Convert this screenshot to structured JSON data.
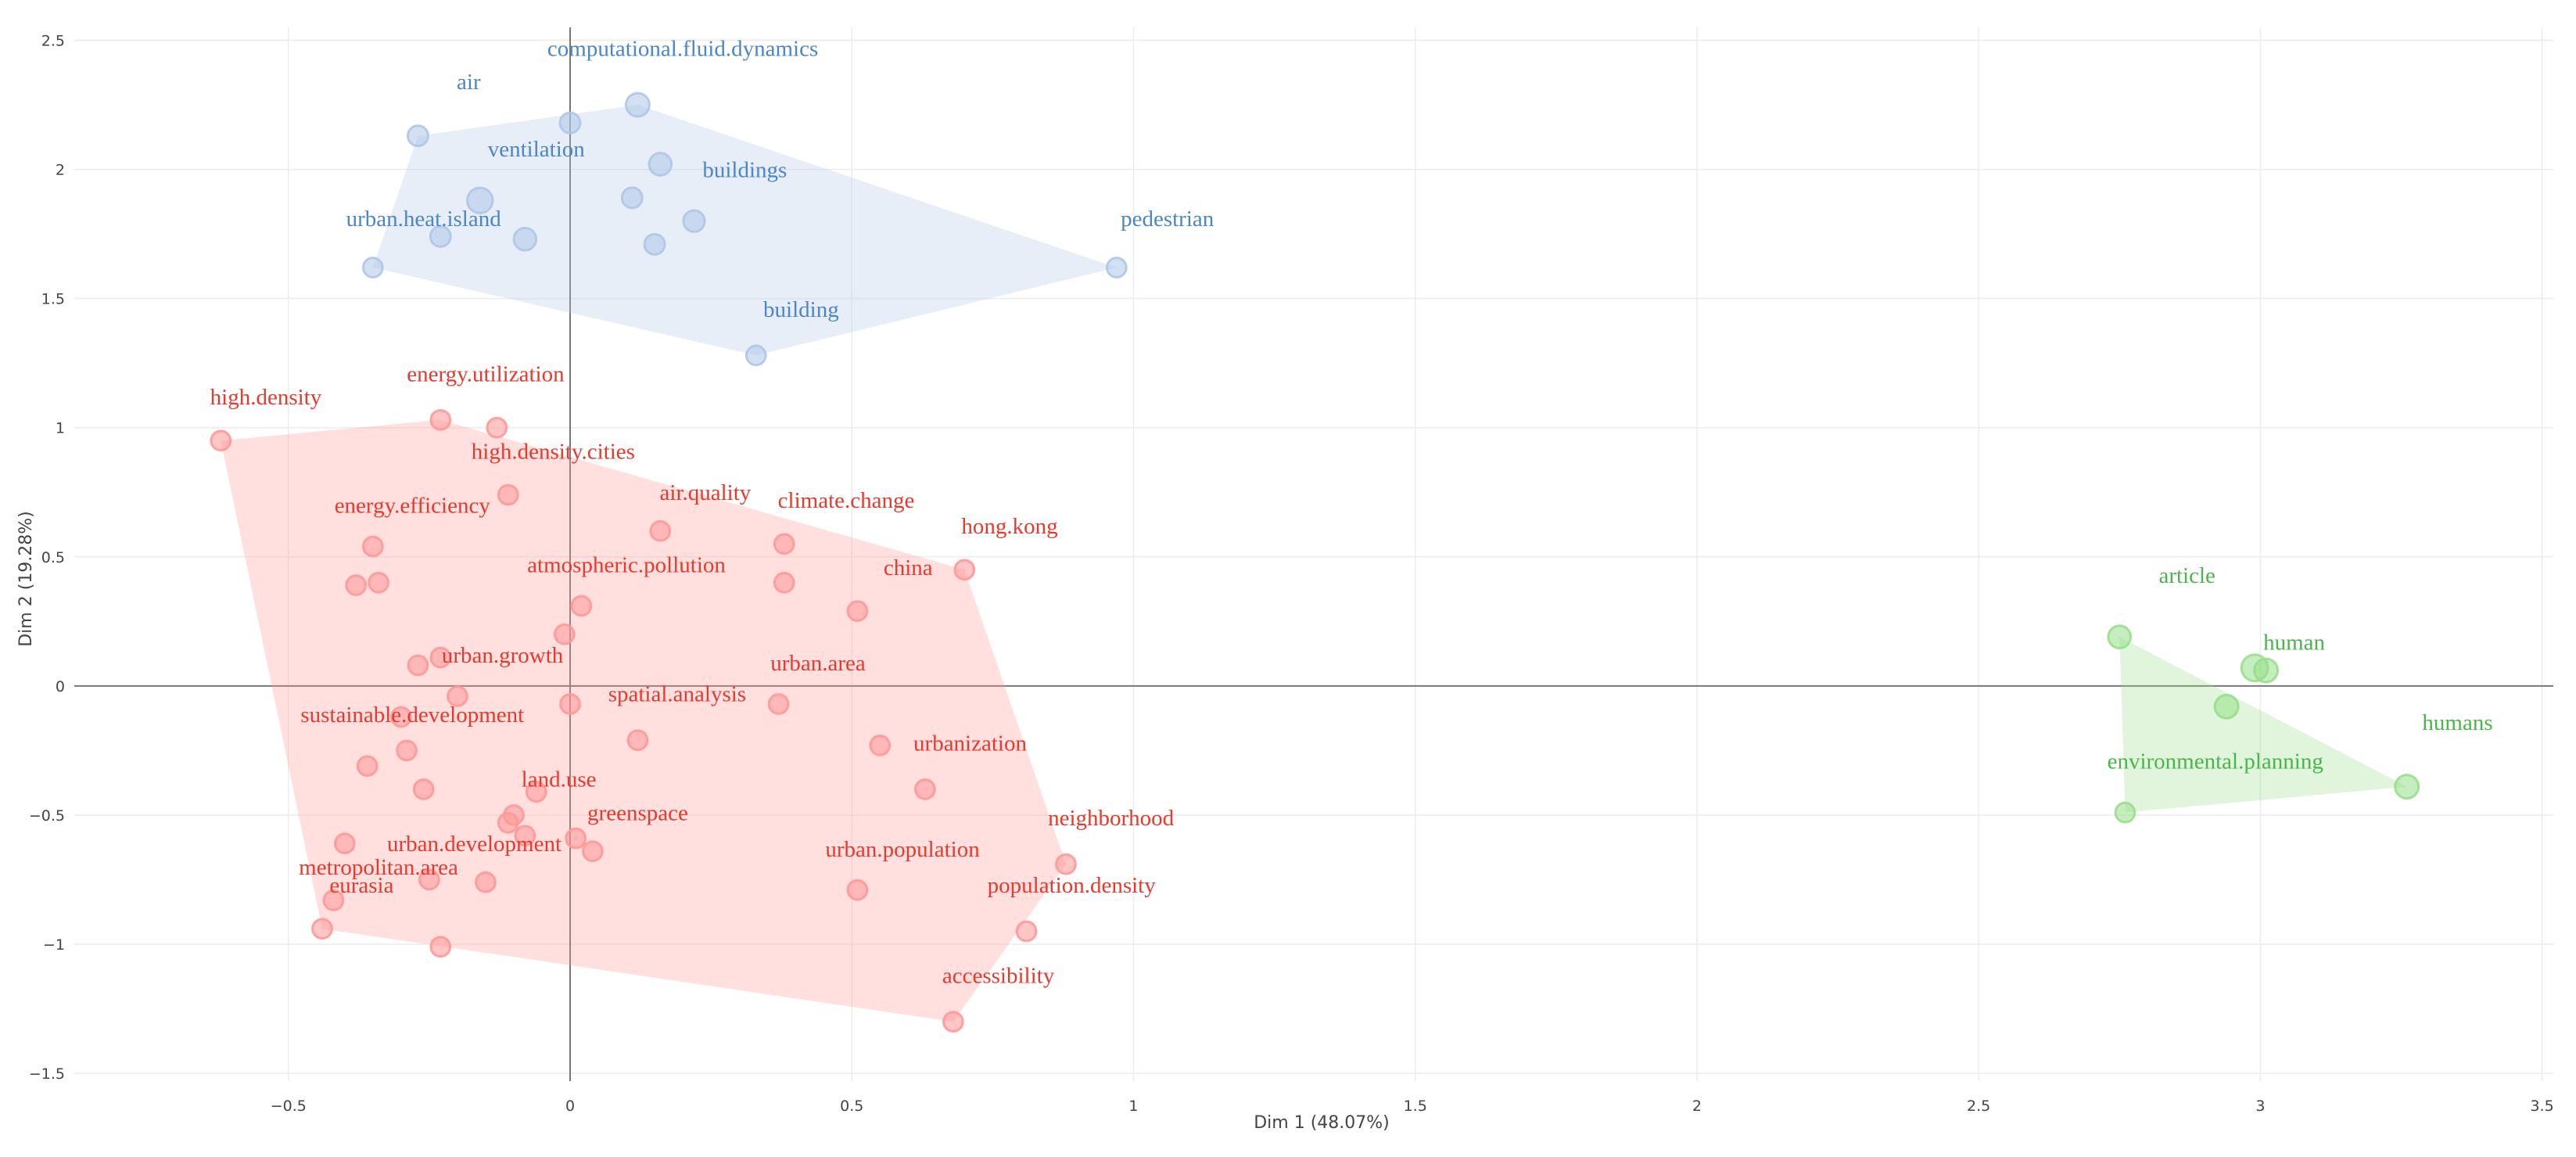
{
  "chart_data": {
    "type": "scatter",
    "title": "",
    "xlabel": "Dim 1 (48.07%)",
    "ylabel": "Dim 2 (19.28%)",
    "xlim": [
      -0.88,
      3.52
    ],
    "ylim": [
      -1.53,
      2.55
    ],
    "xticks": [
      -0.5,
      0,
      0.5,
      1,
      1.5,
      2,
      2.5,
      3,
      3.5
    ],
    "yticks": [
      -1.5,
      -1,
      -0.5,
      0,
      0.5,
      1,
      1.5,
      2,
      2.5
    ],
    "xtick_labels": [
      "−0.5",
      "0",
      "0.5",
      "1",
      "1.5",
      "2",
      "2.5",
      "3",
      "3.5"
    ],
    "ytick_labels": [
      "−1.5",
      "−1",
      "−0.5",
      "0",
      "0.5",
      "1",
      "1.5",
      "2",
      "2.5"
    ],
    "grid": true,
    "clusters": [
      {
        "name": "cluster-1",
        "color": "#4a86c8",
        "fill": "#aec7e8",
        "hull": [
          [
            -0.27,
            2.13
          ],
          [
            0.12,
            2.25
          ],
          [
            0.97,
            1.62
          ],
          [
            0.33,
            1.28
          ],
          [
            -0.35,
            1.62
          ]
        ],
        "points": [
          {
            "x": -0.27,
            "y": 2.13,
            "r": 1.0
          },
          {
            "x": 0.0,
            "y": 2.18,
            "r": 1.0
          },
          {
            "x": 0.12,
            "y": 2.25,
            "r": 1.15
          },
          {
            "x": 0.16,
            "y": 2.02,
            "r": 1.1
          },
          {
            "x": -0.16,
            "y": 1.88,
            "r": 1.25
          },
          {
            "x": 0.11,
            "y": 1.89,
            "r": 1.0
          },
          {
            "x": 0.22,
            "y": 1.8,
            "r": 1.05
          },
          {
            "x": -0.23,
            "y": 1.74,
            "r": 1.0
          },
          {
            "x": -0.08,
            "y": 1.73,
            "r": 1.1
          },
          {
            "x": 0.15,
            "y": 1.71,
            "r": 1.0
          },
          {
            "x": -0.35,
            "y": 1.62,
            "r": 0.95
          },
          {
            "x": 0.97,
            "y": 1.62,
            "r": 0.95
          },
          {
            "x": 0.33,
            "y": 1.28,
            "r": 0.95
          }
        ],
        "labels": [
          {
            "text": "computational.fluid.dynamics",
            "x": 0.2,
            "y": 2.44
          },
          {
            "text": "air",
            "x": -0.18,
            "y": 2.31
          },
          {
            "text": "ventilation",
            "x": -0.06,
            "y": 2.05
          },
          {
            "text": "buildings",
            "x": 0.31,
            "y": 1.97
          },
          {
            "text": "urban.heat.island",
            "x": -0.26,
            "y": 1.78
          },
          {
            "text": "pedestrian",
            "x": 1.06,
            "y": 1.78
          },
          {
            "text": "building",
            "x": 0.41,
            "y": 1.43
          }
        ]
      },
      {
        "name": "cluster-2",
        "color": "#e8392c",
        "fill": "#ff9896",
        "hull": [
          [
            -0.62,
            0.95
          ],
          [
            -0.23,
            1.03
          ],
          [
            0.7,
            0.45
          ],
          [
            0.88,
            -0.69
          ],
          [
            0.68,
            -1.3
          ],
          [
            -0.44,
            -0.94
          ]
        ],
        "points": [
          {
            "x": -0.62,
            "y": 0.95,
            "r": 0.95
          },
          {
            "x": -0.23,
            "y": 1.03,
            "r": 0.95
          },
          {
            "x": -0.13,
            "y": 1.0,
            "r": 0.95
          },
          {
            "x": -0.11,
            "y": 0.74,
            "r": 0.95
          },
          {
            "x": -0.35,
            "y": 0.54,
            "r": 0.95
          },
          {
            "x": -0.38,
            "y": 0.39,
            "r": 0.95
          },
          {
            "x": -0.34,
            "y": 0.4,
            "r": 0.95
          },
          {
            "x": 0.16,
            "y": 0.6,
            "r": 0.95
          },
          {
            "x": 0.38,
            "y": 0.55,
            "r": 0.95
          },
          {
            "x": 0.38,
            "y": 0.4,
            "r": 0.95
          },
          {
            "x": 0.7,
            "y": 0.45,
            "r": 0.95
          },
          {
            "x": 0.51,
            "y": 0.29,
            "r": 0.95
          },
          {
            "x": 0.02,
            "y": 0.31,
            "r": 0.95
          },
          {
            "x": -0.01,
            "y": 0.2,
            "r": 0.95
          },
          {
            "x": -0.23,
            "y": 0.11,
            "r": 0.95
          },
          {
            "x": -0.27,
            "y": 0.08,
            "r": 0.95
          },
          {
            "x": -0.2,
            "y": -0.04,
            "r": 0.95
          },
          {
            "x": 0.0,
            "y": -0.07,
            "r": 0.95
          },
          {
            "x": 0.37,
            "y": -0.07,
            "r": 0.95
          },
          {
            "x": 0.12,
            "y": -0.21,
            "r": 0.95
          },
          {
            "x": -0.3,
            "y": -0.12,
            "r": 0.95
          },
          {
            "x": -0.29,
            "y": -0.25,
            "r": 0.95
          },
          {
            "x": -0.36,
            "y": -0.31,
            "r": 0.95
          },
          {
            "x": -0.26,
            "y": -0.4,
            "r": 0.95
          },
          {
            "x": 0.55,
            "y": -0.23,
            "r": 0.95
          },
          {
            "x": 0.63,
            "y": -0.4,
            "r": 0.95
          },
          {
            "x": -0.06,
            "y": -0.41,
            "r": 0.95
          },
          {
            "x": -0.1,
            "y": -0.5,
            "r": 0.95
          },
          {
            "x": -0.11,
            "y": -0.53,
            "r": 0.95
          },
          {
            "x": 0.01,
            "y": -0.59,
            "r": 0.95
          },
          {
            "x": 0.04,
            "y": -0.64,
            "r": 0.95
          },
          {
            "x": -0.08,
            "y": -0.58,
            "r": 0.95
          },
          {
            "x": -0.4,
            "y": -0.61,
            "r": 0.95
          },
          {
            "x": -0.25,
            "y": -0.75,
            "r": 0.95
          },
          {
            "x": -0.15,
            "y": -0.76,
            "r": 0.95
          },
          {
            "x": -0.42,
            "y": -0.83,
            "r": 0.95
          },
          {
            "x": -0.44,
            "y": -0.94,
            "r": 0.95
          },
          {
            "x": -0.23,
            "y": -1.01,
            "r": 0.95
          },
          {
            "x": 0.51,
            "y": -0.79,
            "r": 0.95
          },
          {
            "x": 0.88,
            "y": -0.69,
            "r": 0.95
          },
          {
            "x": 0.81,
            "y": -0.95,
            "r": 0.95
          },
          {
            "x": 0.68,
            "y": -1.3,
            "r": 0.95
          }
        ],
        "labels": [
          {
            "text": "high.density",
            "x": -0.54,
            "y": 1.09
          },
          {
            "text": "energy.utilization",
            "x": -0.15,
            "y": 1.18
          },
          {
            "text": "high.density.cities",
            "x": -0.03,
            "y": 0.88
          },
          {
            "text": "energy.efficiency",
            "x": -0.28,
            "y": 0.67
          },
          {
            "text": "air.quality",
            "x": 0.24,
            "y": 0.72
          },
          {
            "text": "climate.change",
            "x": 0.49,
            "y": 0.69
          },
          {
            "text": "hong.kong",
            "x": 0.78,
            "y": 0.59
          },
          {
            "text": "atmospheric.pollution",
            "x": 0.1,
            "y": 0.44
          },
          {
            "text": "china",
            "x": 0.6,
            "y": 0.43
          },
          {
            "text": "urban.growth",
            "x": -0.12,
            "y": 0.09
          },
          {
            "text": "urban.area",
            "x": 0.44,
            "y": 0.06
          },
          {
            "text": "spatial.analysis",
            "x": 0.19,
            "y": -0.06
          },
          {
            "text": "sustainable.development",
            "x": -0.28,
            "y": -0.14
          },
          {
            "text": "urbanization",
            "x": 0.71,
            "y": -0.25
          },
          {
            "text": "land.use",
            "x": -0.02,
            "y": -0.39
          },
          {
            "text": "greenspace",
            "x": 0.12,
            "y": -0.52
          },
          {
            "text": "neighborhood",
            "x": 0.96,
            "y": -0.54
          },
          {
            "text": "urban.development",
            "x": -0.17,
            "y": -0.64
          },
          {
            "text": "urban.population",
            "x": 0.59,
            "y": -0.66
          },
          {
            "text": "metropolitan.area",
            "x": -0.34,
            "y": -0.73
          },
          {
            "text": "eurasia",
            "x": -0.37,
            "y": -0.8
          },
          {
            "text": "population.density",
            "x": 0.89,
            "y": -0.8
          },
          {
            "text": "accessibility",
            "x": 0.76,
            "y": -1.15
          }
        ]
      },
      {
        "name": "cluster-3",
        "color": "#4ab54a",
        "fill": "#98df8a",
        "hull": [
          [
            2.75,
            0.19
          ],
          [
            3.26,
            -0.39
          ],
          [
            2.76,
            -0.49
          ]
        ],
        "points": [
          {
            "x": 2.75,
            "y": 0.19,
            "r": 1.1
          },
          {
            "x": 2.99,
            "y": 0.07,
            "r": 1.3
          },
          {
            "x": 3.01,
            "y": 0.06,
            "r": 1.15
          },
          {
            "x": 2.94,
            "y": -0.08,
            "r": 1.15
          },
          {
            "x": 3.26,
            "y": -0.39,
            "r": 1.15
          },
          {
            "x": 2.76,
            "y": -0.49,
            "r": 0.95
          }
        ],
        "labels": [
          {
            "text": "article",
            "x": 2.87,
            "y": 0.4
          },
          {
            "text": "human",
            "x": 3.06,
            "y": 0.14
          },
          {
            "text": "humans",
            "x": 3.35,
            "y": -0.17
          },
          {
            "text": "environmental.planning",
            "x": 2.92,
            "y": -0.32
          }
        ]
      }
    ]
  }
}
